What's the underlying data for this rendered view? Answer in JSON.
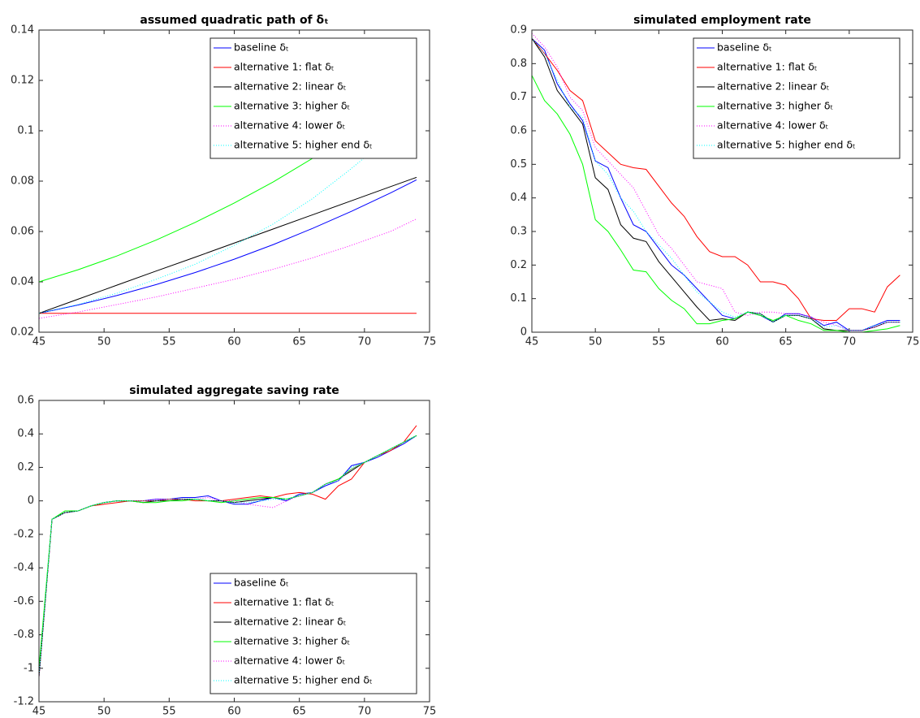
{
  "chart_data": [
    {
      "type": "line",
      "title": "assumed quadratic path of δₜ",
      "x": [
        45,
        48,
        51,
        54,
        57,
        60,
        63,
        66,
        69,
        72,
        74
      ],
      "xlim": [
        45,
        75
      ],
      "xticks": [
        45,
        50,
        55,
        60,
        65,
        70,
        75
      ],
      "ylim": [
        0.02,
        0.14
      ],
      "yticks": [
        0.02,
        0.04,
        0.06,
        0.08,
        0.1,
        0.12,
        0.14
      ],
      "legend": "upper right",
      "series": [
        {
          "name": "baseline δₜ",
          "color": "#0000ff",
          "linestyle": "solid",
          "values": [
            0.0275,
            0.0308,
            0.0346,
            0.0389,
            0.0437,
            0.049,
            0.0548,
            0.0612,
            0.068,
            0.0753,
            0.0805
          ]
        },
        {
          "name": "alternative 1: flat δₜ",
          "color": "#ff0000",
          "linestyle": "solid",
          "values": [
            0.0275,
            0.0275,
            0.0275,
            0.0275,
            0.0275,
            0.0275,
            0.0275,
            0.0275,
            0.0275,
            0.0275,
            0.0275
          ]
        },
        {
          "name": "alternative 2: linear δₜ",
          "color": "#000000",
          "linestyle": "solid",
          "values": [
            0.0275,
            0.0331,
            0.0387,
            0.0443,
            0.0498,
            0.0554,
            0.061,
            0.0666,
            0.0722,
            0.0778,
            0.0815
          ]
        },
        {
          "name": "alternative 3: higher δₜ",
          "color": "#00ff00",
          "linestyle": "solid",
          "values": [
            0.04,
            0.0448,
            0.0503,
            0.0566,
            0.0636,
            0.0713,
            0.0797,
            0.089,
            0.0989,
            0.1096,
            0.1171
          ]
        },
        {
          "name": "alternative 4: lower δₜ",
          "color": "#ff00ff",
          "linestyle": "dotted",
          "values": [
            0.0255,
            0.028,
            0.031,
            0.034,
            0.0375,
            0.041,
            0.045,
            0.0495,
            0.0545,
            0.06,
            0.065
          ]
        },
        {
          "name": "alternative 5: higher end δₜ",
          "color": "#00ffff",
          "linestyle": "dotted",
          "values": [
            0.0275,
            0.031,
            0.0355,
            0.041,
            0.047,
            0.0545,
            0.063,
            0.073,
            0.085,
            0.098,
            0.108
          ]
        }
      ]
    },
    {
      "type": "line",
      "title": "simulated employment rate",
      "x": [
        45,
        46,
        47,
        48,
        49,
        50,
        51,
        52,
        53,
        54,
        55,
        56,
        57,
        58,
        59,
        60,
        61,
        62,
        63,
        64,
        65,
        66,
        67,
        68,
        69,
        70,
        71,
        72,
        73,
        74
      ],
      "xlim": [
        45,
        75
      ],
      "xticks": [
        45,
        50,
        55,
        60,
        65,
        70,
        75
      ],
      "ylim": [
        0,
        0.9
      ],
      "yticks": [
        0,
        0.1,
        0.2,
        0.3,
        0.4,
        0.5,
        0.6,
        0.7,
        0.8,
        0.9
      ],
      "legend": "upper right",
      "series": [
        {
          "name": "baseline δₜ",
          "color": "#0000ff",
          "linestyle": "solid",
          "values": [
            0.875,
            0.84,
            0.74,
            0.68,
            0.63,
            0.51,
            0.49,
            0.4,
            0.32,
            0.3,
            0.25,
            0.2,
            0.17,
            0.13,
            0.09,
            0.05,
            0.04,
            0.06,
            0.05,
            0.03,
            0.055,
            0.055,
            0.045,
            0.02,
            0.03,
            0.005,
            0.005,
            0.02,
            0.035,
            0.035
          ]
        },
        {
          "name": "alternative 1: flat δₜ",
          "color": "#ff0000",
          "linestyle": "solid",
          "values": [
            0.875,
            0.83,
            0.78,
            0.72,
            0.69,
            0.57,
            0.535,
            0.5,
            0.49,
            0.485,
            0.435,
            0.385,
            0.345,
            0.285,
            0.24,
            0.225,
            0.225,
            0.2,
            0.15,
            0.15,
            0.14,
            0.1,
            0.04,
            0.035,
            0.035,
            0.07,
            0.07,
            0.06,
            0.135,
            0.17
          ]
        },
        {
          "name": "alternative 2: linear δₜ",
          "color": "#000000",
          "linestyle": "solid",
          "values": [
            0.875,
            0.82,
            0.72,
            0.67,
            0.62,
            0.46,
            0.425,
            0.32,
            0.28,
            0.27,
            0.21,
            0.165,
            0.12,
            0.075,
            0.035,
            0.04,
            0.035,
            0.06,
            0.055,
            0.03,
            0.05,
            0.05,
            0.04,
            0.01,
            0.005,
            0.005,
            0.005,
            0.015,
            0.03,
            0.03
          ]
        },
        {
          "name": "alternative 3: higher δₜ",
          "color": "#00ff00",
          "linestyle": "solid",
          "values": [
            0.765,
            0.69,
            0.65,
            0.59,
            0.5,
            0.335,
            0.3,
            0.245,
            0.185,
            0.18,
            0.13,
            0.095,
            0.07,
            0.025,
            0.025,
            0.035,
            0.04,
            0.06,
            0.05,
            0.035,
            0.05,
            0.035,
            0.025,
            0.005,
            0.005,
            0,
            0,
            0.005,
            0.01,
            0.02
          ]
        },
        {
          "name": "alternative 4: lower δₜ",
          "color": "#ff00ff",
          "linestyle": "dotted",
          "values": [
            0.89,
            0.85,
            0.79,
            0.7,
            0.66,
            0.55,
            0.51,
            0.47,
            0.43,
            0.36,
            0.29,
            0.25,
            0.2,
            0.15,
            0.14,
            0.13,
            0.06,
            0.05,
            0.06,
            0.06,
            0.055,
            0.055,
            0.045,
            0.03,
            0.02,
            0.005,
            0.005,
            0.015,
            0.03,
            0.03
          ]
        },
        {
          "name": "alternative 5: higher end δₜ",
          "color": "#00ffff",
          "linestyle": "dotted",
          "values": [
            0.875,
            0.83,
            0.75,
            0.67,
            0.64,
            0.51,
            0.47,
            0.4,
            0.36,
            0.3,
            0.26,
            0.22,
            0.17,
            0.12,
            0.09,
            0.06,
            0.045,
            0.06,
            0.055,
            0.03,
            0.05,
            0.05,
            0.04,
            0.015,
            0.02,
            0.005,
            0.005,
            0.02,
            0.03,
            0.03
          ]
        }
      ]
    },
    {
      "type": "line",
      "title": "simulated aggregate saving rate",
      "x": [
        45,
        46,
        47,
        48,
        49,
        50,
        51,
        52,
        53,
        54,
        55,
        56,
        57,
        58,
        59,
        60,
        61,
        62,
        63,
        64,
        65,
        66,
        67,
        68,
        69,
        70,
        71,
        72,
        73,
        74
      ],
      "xlim": [
        45,
        75
      ],
      "xticks": [
        45,
        50,
        55,
        60,
        65,
        70,
        75
      ],
      "ylim": [
        -1.2,
        0.6
      ],
      "yticks": [
        -1.2,
        -1,
        -0.8,
        -0.6,
        -0.4,
        -0.2,
        0,
        0.2,
        0.4,
        0.6
      ],
      "legend": "lower right",
      "series": [
        {
          "name": "baseline δₜ",
          "color": "#0000ff",
          "linestyle": "solid",
          "values": [
            -1.05,
            -0.11,
            -0.07,
            -0.06,
            -0.03,
            -0.01,
            0,
            0,
            0,
            0.01,
            0.01,
            0.02,
            0.02,
            0.03,
            0,
            -0.02,
            -0.02,
            0,
            0.02,
            0,
            0.04,
            0.05,
            0.09,
            0.12,
            0.21,
            0.23,
            0.26,
            0.3,
            0.34,
            0.39
          ]
        },
        {
          "name": "alternative 1: flat δₜ",
          "color": "#ff0000",
          "linestyle": "solid",
          "values": [
            -1.05,
            -0.11,
            -0.07,
            -0.06,
            -0.03,
            -0.02,
            -0.01,
            0,
            0,
            0,
            0.01,
            0.01,
            0,
            0,
            0,
            0.01,
            0.02,
            0.03,
            0.02,
            0.04,
            0.05,
            0.04,
            0.01,
            0.09,
            0.13,
            0.23,
            0.27,
            0.3,
            0.35,
            0.45
          ]
        },
        {
          "name": "alternative 2: linear δₜ",
          "color": "#000000",
          "linestyle": "solid",
          "values": [
            -1.05,
            -0.11,
            -0.07,
            -0.06,
            -0.03,
            -0.01,
            0,
            0,
            -0.01,
            0,
            0,
            0.01,
            0.01,
            0,
            0,
            -0.01,
            0,
            0.01,
            0.02,
            0.01,
            0.03,
            0.05,
            0.1,
            0.13,
            0.18,
            0.23,
            0.27,
            0.31,
            0.35,
            0.39
          ]
        },
        {
          "name": "alternative 3: higher δₜ",
          "color": "#00ff00",
          "linestyle": "solid",
          "values": [
            -1,
            -0.11,
            -0.06,
            -0.06,
            -0.03,
            -0.01,
            0,
            0,
            -0.01,
            -0.01,
            0,
            0,
            0.01,
            0,
            -0.01,
            0,
            0.01,
            0.02,
            0.02,
            0.01,
            0.03,
            0.05,
            0.1,
            0.13,
            0.19,
            0.23,
            0.27,
            0.31,
            0.35,
            0.39
          ]
        },
        {
          "name": "alternative 4: lower δₜ",
          "color": "#ff00ff",
          "linestyle": "dotted",
          "values": [
            -1.05,
            -0.11,
            -0.07,
            -0.06,
            -0.03,
            -0.01,
            0,
            0,
            0,
            0.01,
            0.01,
            0.01,
            0.01,
            0.02,
            0,
            0,
            -0.02,
            -0.03,
            -0.04,
            0,
            0.03,
            0.05,
            0.1,
            0.12,
            0.19,
            0.23,
            0.27,
            0.31,
            0.35,
            0.39
          ]
        },
        {
          "name": "alternative 5: higher end δₜ",
          "color": "#00ffff",
          "linestyle": "dotted",
          "values": [
            -1.05,
            -0.11,
            -0.07,
            -0.06,
            -0.03,
            -0.01,
            0,
            0,
            0,
            0,
            0.01,
            0.01,
            0.01,
            0,
            0,
            -0.01,
            -0.01,
            0,
            0.01,
            0.01,
            0.03,
            0.05,
            0.1,
            0.12,
            0.2,
            0.23,
            0.27,
            0.31,
            0.35,
            0.39
          ]
        }
      ]
    }
  ]
}
